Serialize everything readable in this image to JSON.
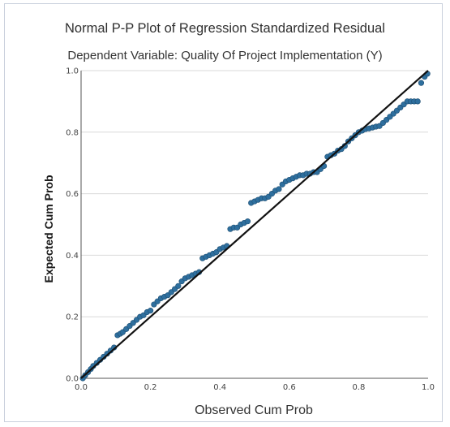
{
  "chart_data": {
    "type": "scatter",
    "title": "Normal P-P Plot of Regression Standardized Residual",
    "subtitle": "Dependent Variable: Quality Of Project Implementation (Y)",
    "xlabel": "Observed Cum Prob",
    "ylabel": "Expected Cum Prob",
    "xlim": [
      0,
      1
    ],
    "ylim": [
      0,
      1
    ],
    "xticks": [
      "0.0",
      "0.2",
      "0.4",
      "0.6",
      "0.8",
      "1.0"
    ],
    "yticks": [
      "0.0",
      "0.2",
      "0.4",
      "0.6",
      "0.8",
      "1.0"
    ],
    "grid": "horizontal",
    "reference_line": [
      [
        0,
        0
      ],
      [
        1,
        1
      ]
    ],
    "point_color": "#2e6f9e",
    "line_color": "#111111",
    "grid_color": "#d9d9d9",
    "series": [
      {
        "x": [
          0.005,
          0.012,
          0.02,
          0.028,
          0.035,
          0.045,
          0.055,
          0.065,
          0.075,
          0.085,
          0.095,
          0.105,
          0.113,
          0.12,
          0.13,
          0.14,
          0.15,
          0.16,
          0.17,
          0.18,
          0.19,
          0.2,
          0.21,
          0.22,
          0.23,
          0.24,
          0.25,
          0.26,
          0.27,
          0.28,
          0.29,
          0.3,
          0.31,
          0.32,
          0.33,
          0.34,
          0.35,
          0.36,
          0.37,
          0.38,
          0.39,
          0.4,
          0.41,
          0.42,
          0.43,
          0.44,
          0.45,
          0.46,
          0.47,
          0.48,
          0.49,
          0.5,
          0.51,
          0.52,
          0.53,
          0.54,
          0.55,
          0.56,
          0.57,
          0.58,
          0.59,
          0.6,
          0.61,
          0.62,
          0.63,
          0.64,
          0.65,
          0.66,
          0.67,
          0.68,
          0.69,
          0.7,
          0.71,
          0.72,
          0.73,
          0.74,
          0.75,
          0.76,
          0.77,
          0.78,
          0.79,
          0.8,
          0.81,
          0.82,
          0.83,
          0.84,
          0.85,
          0.86,
          0.87,
          0.88,
          0.89,
          0.9,
          0.91,
          0.92,
          0.93,
          0.94,
          0.95,
          0.96,
          0.97,
          0.98,
          0.99,
          0.998
        ],
        "y": [
          0.0,
          0.01,
          0.02,
          0.03,
          0.04,
          0.05,
          0.06,
          0.07,
          0.08,
          0.09,
          0.1,
          0.14,
          0.145,
          0.15,
          0.16,
          0.17,
          0.18,
          0.19,
          0.2,
          0.205,
          0.215,
          0.22,
          0.24,
          0.25,
          0.26,
          0.265,
          0.27,
          0.28,
          0.29,
          0.3,
          0.315,
          0.325,
          0.33,
          0.335,
          0.34,
          0.345,
          0.39,
          0.395,
          0.4,
          0.405,
          0.41,
          0.42,
          0.425,
          0.43,
          0.485,
          0.49,
          0.49,
          0.5,
          0.505,
          0.51,
          0.57,
          0.575,
          0.58,
          0.585,
          0.585,
          0.59,
          0.6,
          0.61,
          0.615,
          0.63,
          0.64,
          0.645,
          0.65,
          0.655,
          0.66,
          0.66,
          0.665,
          0.665,
          0.67,
          0.67,
          0.68,
          0.69,
          0.72,
          0.725,
          0.73,
          0.74,
          0.745,
          0.755,
          0.77,
          0.78,
          0.79,
          0.8,
          0.805,
          0.81,
          0.812,
          0.815,
          0.818,
          0.82,
          0.83,
          0.84,
          0.85,
          0.86,
          0.87,
          0.88,
          0.89,
          0.9,
          0.9,
          0.9,
          0.9,
          0.96,
          0.98,
          0.99
        ]
      }
    ]
  }
}
